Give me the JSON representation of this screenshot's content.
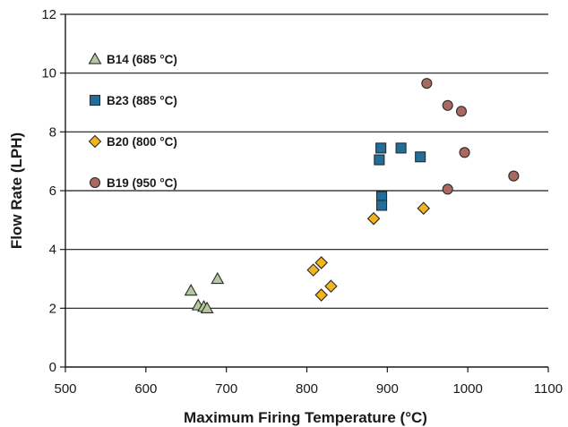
{
  "chart_data": {
    "type": "scatter",
    "title": "",
    "xlabel": "Maximum Firing Temperature (°C)",
    "ylabel": "Flow Rate (LPH)",
    "xlim": [
      500,
      1100
    ],
    "ylim": [
      0,
      12
    ],
    "x_ticks": [
      500,
      600,
      700,
      800,
      900,
      1000,
      1100
    ],
    "y_ticks": [
      0,
      2,
      4,
      6,
      8,
      10,
      12
    ],
    "grid": "horizontal",
    "legend_position": "top-left",
    "series": [
      {
        "name": "B14 (685 °C)",
        "marker": "triangle",
        "color": "#b5c8a0",
        "points": [
          [
            656,
            2.6
          ],
          [
            689,
            3.0
          ],
          [
            665,
            2.1
          ],
          [
            672,
            2.05
          ],
          [
            676,
            2.0
          ]
        ]
      },
      {
        "name": "B23 (885 °C)",
        "marker": "square",
        "color": "#1f6e9c",
        "points": [
          [
            892,
            7.45
          ],
          [
            890,
            7.05
          ],
          [
            917,
            7.45
          ],
          [
            941,
            7.15
          ],
          [
            893,
            5.8
          ],
          [
            893,
            5.5
          ]
        ]
      },
      {
        "name": "B20 (800 °C)",
        "marker": "diamond",
        "color": "#f2b41e",
        "points": [
          [
            808,
            3.3
          ],
          [
            818,
            3.55
          ],
          [
            818,
            2.45
          ],
          [
            830,
            2.75
          ],
          [
            883,
            5.05
          ],
          [
            945,
            5.4
          ]
        ]
      },
      {
        "name": "B19 (950 °C)",
        "marker": "circle",
        "color": "#a9695f",
        "points": [
          [
            949,
            9.65
          ],
          [
            975,
            8.9
          ],
          [
            992,
            8.7
          ],
          [
            996,
            7.3
          ],
          [
            975,
            6.05
          ],
          [
            1057,
            6.5
          ]
        ]
      }
    ]
  }
}
